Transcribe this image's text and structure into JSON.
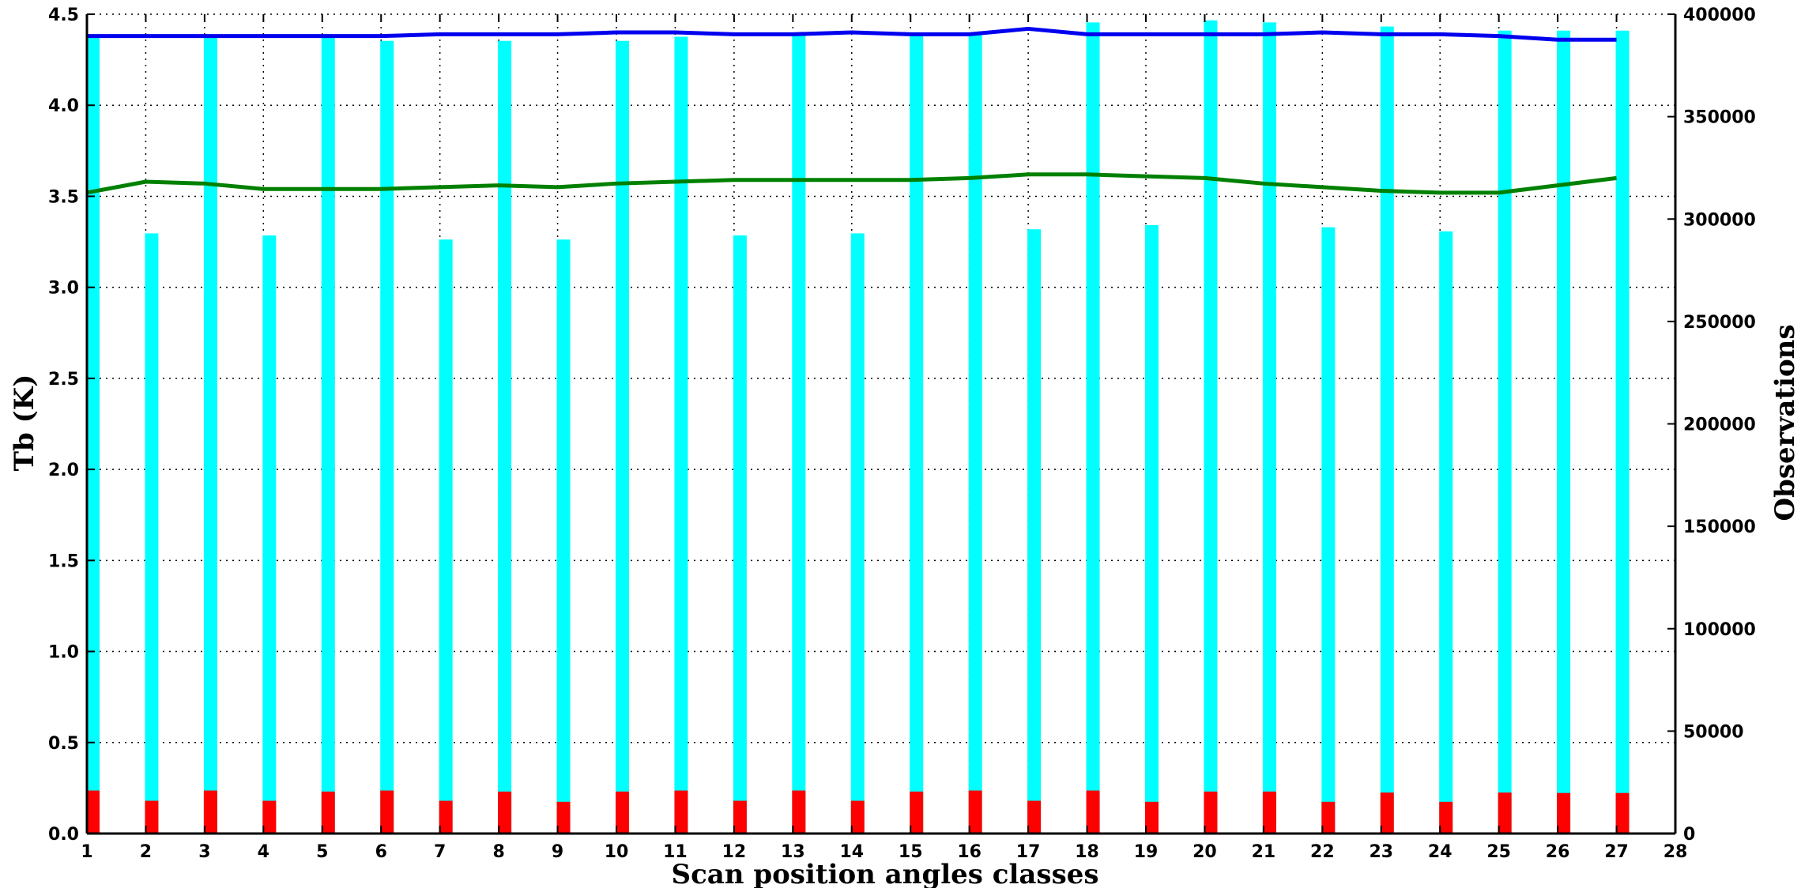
{
  "chart_data": {
    "type": "bar",
    "title": "",
    "xlabel": "Scan position angles classes",
    "ylabel_left": "Tb (K)",
    "ylabel_right": "Observations",
    "xlim": [
      1,
      28
    ],
    "ylim_left": [
      0,
      4.5
    ],
    "ylim_right": [
      0,
      400000
    ],
    "x_ticks": [
      "1",
      "2",
      "3",
      "4",
      "5",
      "6",
      "7",
      "8",
      "9",
      "10",
      "11",
      "12",
      "13",
      "14",
      "15",
      "16",
      "17",
      "18",
      "19",
      "20",
      "21",
      "22",
      "23",
      "24",
      "25",
      "26",
      "27",
      "28"
    ],
    "y_ticks_left": [
      "0.0",
      "0.5",
      "1.0",
      "1.5",
      "2.0",
      "2.5",
      "3.0",
      "3.5",
      "4.0",
      "4.5"
    ],
    "y_ticks_right": [
      "0",
      "50000",
      "100000",
      "150000",
      "200000",
      "250000",
      "300000",
      "350000",
      "400000"
    ],
    "grid": true,
    "categories": [
      1,
      2,
      3,
      4,
      5,
      6,
      7,
      8,
      9,
      10,
      11,
      12,
      13,
      14,
      15,
      16,
      17,
      18,
      19,
      20,
      21,
      22,
      23,
      24,
      25,
      26,
      27
    ],
    "bar_series": [
      {
        "color": "#00ffff",
        "axis": "right",
        "values": [
          390000,
          293000,
          390000,
          292000,
          390000,
          387000,
          290000,
          387000,
          290000,
          387000,
          389000,
          292000,
          390000,
          293000,
          390000,
          390000,
          295000,
          396000,
          297000,
          397000,
          396000,
          296000,
          394000,
          294000,
          392000,
          392000,
          392000
        ]
      },
      {
        "color": "#ff0000",
        "axis": "right",
        "values": [
          21000,
          16000,
          21000,
          16000,
          20500,
          21000,
          16000,
          20500,
          15500,
          20500,
          21000,
          16000,
          21000,
          16000,
          20500,
          21000,
          16000,
          21000,
          15500,
          20500,
          20500,
          15500,
          20000,
          15500,
          20000,
          19800,
          19800
        ]
      }
    ],
    "line_series": [
      {
        "color": "#0000ee",
        "axis": "left",
        "values": [
          4.38,
          4.38,
          4.38,
          4.38,
          4.38,
          4.38,
          4.39,
          4.39,
          4.39,
          4.4,
          4.4,
          4.39,
          4.39,
          4.4,
          4.39,
          4.39,
          4.42,
          4.39,
          4.39,
          4.39,
          4.39,
          4.4,
          4.39,
          4.39,
          4.38,
          4.36,
          4.36
        ]
      },
      {
        "color": "#008000",
        "axis": "left",
        "values": [
          3.52,
          3.58,
          3.57,
          3.54,
          3.54,
          3.54,
          3.55,
          3.56,
          3.55,
          3.57,
          3.58,
          3.59,
          3.59,
          3.59,
          3.59,
          3.6,
          3.62,
          3.62,
          3.61,
          3.6,
          3.57,
          3.55,
          3.53,
          3.52,
          3.52,
          3.56,
          3.6
        ]
      }
    ]
  }
}
